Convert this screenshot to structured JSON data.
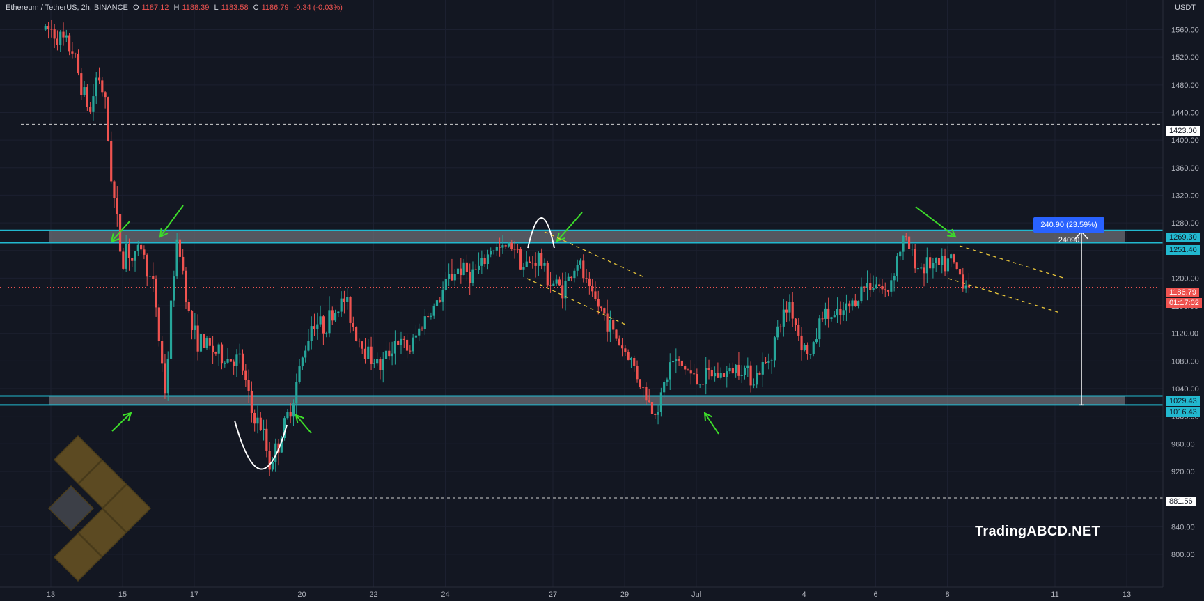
{
  "header": {
    "symbol": "Ethereum / TetherUS, 2h, BINANCE",
    "open_label": "O",
    "open": "1187.12",
    "high_label": "H",
    "high": "1188.39",
    "low_label": "L",
    "low": "1183.58",
    "close_label": "C",
    "close": "1186.79",
    "change": "-0.34 (-0.03%)"
  },
  "currency": "USDT",
  "watermark": "TradingABCD.NET",
  "colors": {
    "background": "#131722",
    "up": "#26a69a",
    "down": "#ef5350",
    "zone_line": "#22b8cf",
    "zone_fill": "#6b6e75",
    "arrow": "#3ddc2a",
    "channel": "#e8c53a",
    "range_label": "#2962ff"
  },
  "price_tags": {
    "level_1423": "1423.00",
    "zone_top_a": "1269.30",
    "zone_top_b": "1251.40",
    "current_price": "1186.79",
    "countdown": "01:17:02",
    "zone_bot_a": "1029.43",
    "zone_bot_b": "1016.43",
    "level_881": "881.56"
  },
  "range_label": "240.90 (23.59%) 24090",
  "chart_data": {
    "type": "candlestick",
    "title": "Ethereum / TetherUS, 2h, BINANCE",
    "y_axis": {
      "labels": [
        "1560.00",
        "1520.00",
        "1480.00",
        "1440.00",
        "1400.00",
        "1360.00",
        "1320.00",
        "1280.00",
        "1240.00",
        "1200.00",
        "1160.00",
        "1120.00",
        "1080.00",
        "1040.00",
        "1000.00",
        "960.00",
        "920.00",
        "880.00",
        "840.00",
        "800.00"
      ],
      "range": [
        760,
        1580
      ]
    },
    "x_axis": {
      "labels": [
        "13",
        "15",
        "17",
        "20",
        "22",
        "24",
        "27",
        "29",
        "Jul",
        "4",
        "6",
        "8",
        "11",
        "13"
      ],
      "positions": [
        0,
        2,
        4,
        7,
        9,
        11,
        14,
        16,
        18,
        21,
        23,
        25,
        28,
        30
      ]
    },
    "current_price": 1186.79,
    "levels": [
      1423.0,
      881.56
    ],
    "resistance_zone": [
      1251.4,
      1269.3
    ],
    "support_zone": [
      1016.43,
      1029.43
    ],
    "measured_range": {
      "value": 240.9,
      "percent": 23.59
    },
    "path": [
      [
        0,
        1560
      ],
      [
        0.3,
        1545
      ],
      [
        0.6,
        1530
      ],
      [
        0.9,
        1470
      ],
      [
        1.1,
        1440
      ],
      [
        1.3,
        1500
      ],
      [
        1.5,
        1460
      ],
      [
        1.7,
        1340
      ],
      [
        1.9,
        1260
      ],
      [
        2.0,
        1215
      ],
      [
        2.1,
        1250
      ],
      [
        2.3,
        1220
      ],
      [
        2.5,
        1250
      ],
      [
        2.7,
        1210
      ],
      [
        2.9,
        1180
      ],
      [
        3.0,
        1120
      ],
      [
        3.2,
        1030
      ],
      [
        3.4,
        1200
      ],
      [
        3.55,
        1255
      ],
      [
        3.7,
        1205
      ],
      [
        3.9,
        1130
      ],
      [
        4.1,
        1110
      ],
      [
        4.4,
        1100
      ],
      [
        4.8,
        1085
      ],
      [
        5.3,
        1080
      ],
      [
        5.6,
        1005
      ],
      [
        5.9,
        980
      ],
      [
        6.1,
        930
      ],
      [
        6.35,
        960
      ],
      [
        6.7,
        1015
      ],
      [
        7.0,
        1080
      ],
      [
        7.3,
        1140
      ],
      [
        7.6,
        1130
      ],
      [
        7.9,
        1150
      ],
      [
        8.2,
        1170
      ],
      [
        8.5,
        1120
      ],
      [
        8.8,
        1095
      ],
      [
        9.2,
        1070
      ],
      [
        9.6,
        1110
      ],
      [
        10.0,
        1095
      ],
      [
        10.4,
        1140
      ],
      [
        10.8,
        1165
      ],
      [
        11.1,
        1200
      ],
      [
        11.4,
        1215
      ],
      [
        11.7,
        1205
      ],
      [
        12.0,
        1215
      ],
      [
        12.3,
        1245
      ],
      [
        12.6,
        1240
      ],
      [
        12.9,
        1252
      ],
      [
        13.2,
        1215
      ],
      [
        13.6,
        1230
      ],
      [
        13.9,
        1195
      ],
      [
        14.3,
        1185
      ],
      [
        14.7,
        1225
      ],
      [
        15.0,
        1180
      ],
      [
        15.4,
        1150
      ],
      [
        15.8,
        1110
      ],
      [
        16.2,
        1080
      ],
      [
        16.5,
        1040
      ],
      [
        16.8,
        1005
      ],
      [
        17.0,
        1025
      ],
      [
        17.3,
        1080
      ],
      [
        17.7,
        1070
      ],
      [
        18.0,
        1050
      ],
      [
        18.4,
        1060
      ],
      [
        18.8,
        1060
      ],
      [
        19.2,
        1075
      ],
      [
        19.6,
        1055
      ],
      [
        20.0,
        1080
      ],
      [
        20.3,
        1130
      ],
      [
        20.6,
        1165
      ],
      [
        20.9,
        1110
      ],
      [
        21.2,
        1085
      ],
      [
        21.5,
        1150
      ],
      [
        21.9,
        1140
      ],
      [
        22.3,
        1160
      ],
      [
        22.7,
        1190
      ],
      [
        23.0,
        1195
      ],
      [
        23.3,
        1175
      ],
      [
        23.6,
        1230
      ],
      [
        23.8,
        1260
      ],
      [
        24.0,
        1235
      ],
      [
        24.2,
        1215
      ],
      [
        24.5,
        1220
      ],
      [
        24.8,
        1215
      ],
      [
        25.1,
        1225
      ],
      [
        25.4,
        1200
      ],
      [
        25.6,
        1187
      ]
    ]
  }
}
